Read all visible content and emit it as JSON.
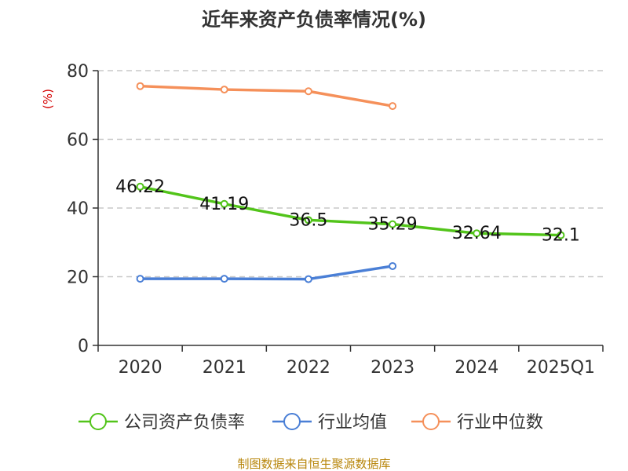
{
  "chart_data": {
    "type": "line",
    "title": "近年来资产负债率情况(%)",
    "ylabel": "(%)",
    "ylim": [
      0,
      80
    ],
    "yticks": [
      0,
      20,
      40,
      60,
      80
    ],
    "categories": [
      "2020",
      "2021",
      "2022",
      "2023",
      "2024",
      "2025Q1"
    ],
    "grid": true,
    "legend_position": "bottom",
    "series": [
      {
        "name": "公司资产负债率",
        "color": "#52c41a",
        "values": [
          46.22,
          41.19,
          36.5,
          35.29,
          32.64,
          32.1
        ],
        "show_labels": true
      },
      {
        "name": "行业均值",
        "color": "#4a7fd6",
        "values": [
          19.4,
          19.4,
          19.3,
          23.1,
          null,
          null
        ],
        "show_labels": false
      },
      {
        "name": "行业中位数",
        "color": "#f5905a",
        "values": [
          75.5,
          74.5,
          74.0,
          69.7,
          null,
          null
        ],
        "show_labels": false
      }
    ],
    "data_labels": [
      "46.22",
      "41.19",
      "36.5",
      "35.29",
      "32.64",
      "32.1"
    ]
  },
  "footer": {
    "source": "制图数据来自恒生聚源数据库"
  }
}
